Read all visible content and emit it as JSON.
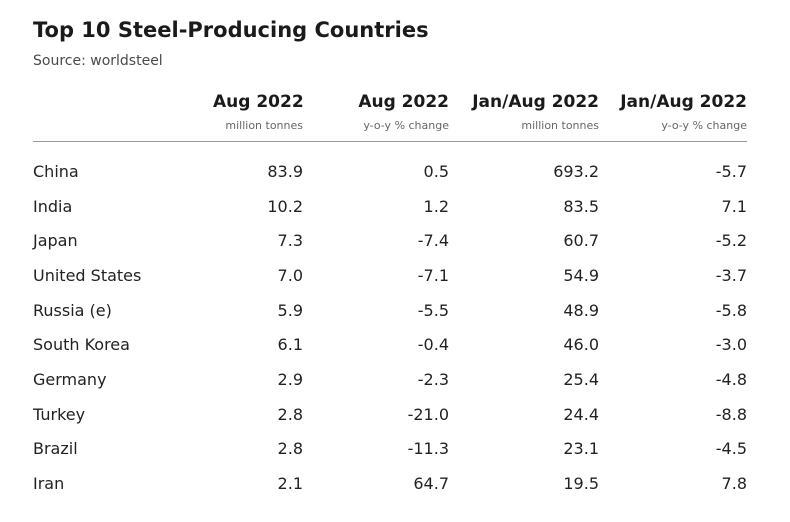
{
  "title": "Top 10 Steel-Producing Countries",
  "subtitle": "Source: worldsteel",
  "columns": [
    {
      "label": "",
      "unit": ""
    },
    {
      "label": "Aug 2022",
      "unit": "million tonnes"
    },
    {
      "label": "Aug 2022",
      "unit": "y-o-y % change"
    },
    {
      "label": "Jan/Aug 2022",
      "unit": "million tonnes"
    },
    {
      "label": "Jan/Aug 2022",
      "unit": "y-o-y % change"
    }
  ],
  "rows": [
    [
      "China",
      "83.9",
      "0.5",
      "693.2",
      "-5.7"
    ],
    [
      "India",
      "10.2",
      "1.2",
      "83.5",
      "7.1"
    ],
    [
      "Japan",
      "7.3",
      "-7.4",
      "60.7",
      "-5.2"
    ],
    [
      "United States",
      "7.0",
      "-7.1",
      "54.9",
      "-3.7"
    ],
    [
      "Russia (e)",
      "5.9",
      "-5.5",
      "48.9",
      "-5.8"
    ],
    [
      "South Korea",
      "6.1",
      "-0.4",
      "46.0",
      "-3.0"
    ],
    [
      "Germany",
      "2.9",
      "-2.3",
      "25.4",
      "-4.8"
    ],
    [
      "Turkey",
      "2.8",
      "-21.0",
      "24.4",
      "-8.8"
    ],
    [
      "Brazil",
      "2.8",
      "-11.3",
      "23.1",
      "-4.5"
    ],
    [
      "Iran",
      "2.1",
      "64.7",
      "19.5",
      "7.8"
    ]
  ],
  "chart_data": {
    "type": "table",
    "title": "Top 10 Steel-Producing Countries",
    "subtitle": "Source: worldsteel",
    "columns": [
      "",
      "Aug 2022 (million tonnes)",
      "Aug 2022 (y-o-y % change)",
      "Jan/Aug 2022 (million tonnes)",
      "Jan/Aug 2022 (y-o-y % change)"
    ],
    "rows": [
      [
        "China",
        83.9,
        0.5,
        693.2,
        -5.7
      ],
      [
        "India",
        10.2,
        1.2,
        83.5,
        7.1
      ],
      [
        "Japan",
        7.3,
        -7.4,
        60.7,
        -5.2
      ],
      [
        "United States",
        7.0,
        -7.1,
        54.9,
        -3.7
      ],
      [
        "Russia (e)",
        5.9,
        -5.5,
        48.9,
        -5.8
      ],
      [
        "South Korea",
        6.1,
        -0.4,
        46.0,
        -3.0
      ],
      [
        "Germany",
        2.9,
        -2.3,
        25.4,
        -4.8
      ],
      [
        "Turkey",
        2.8,
        -21.0,
        24.4,
        -8.8
      ],
      [
        "Brazil",
        2.8,
        -11.3,
        23.1,
        -4.5
      ],
      [
        "Iran",
        2.1,
        64.7,
        19.5,
        7.8
      ]
    ]
  }
}
